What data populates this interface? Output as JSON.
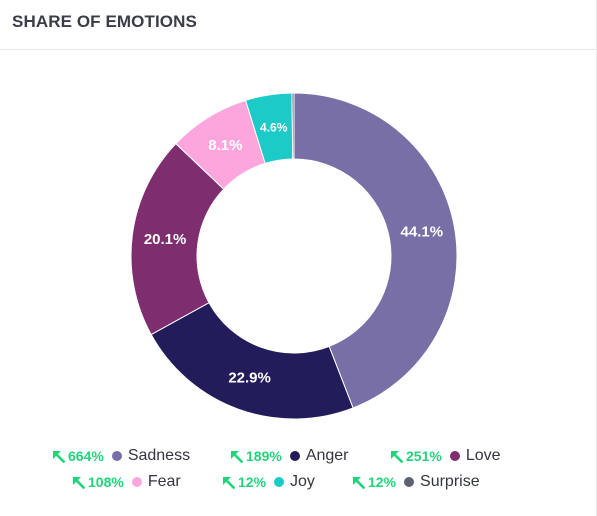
{
  "header": {
    "title": "SHARE OF EMOTIONS"
  },
  "chart_data": {
    "type": "pie",
    "variant": "donut",
    "categories": [
      "Sadness",
      "Anger",
      "Love",
      "Fear",
      "Joy",
      "Surprise"
    ],
    "values": [
      44.1,
      22.9,
      20.1,
      8.1,
      4.6,
      0.2
    ],
    "data_labels": [
      "44.1%",
      "22.9%",
      "20.1%",
      "8.1%",
      "4.6%",
      ""
    ],
    "colors": [
      "#776fa6",
      "#221c5a",
      "#7e2d6e",
      "#fca6dd",
      "#1ccbc8",
      "#5b6270"
    ],
    "legend_placement": "bottom",
    "title": ""
  },
  "legend": {
    "items": [
      {
        "name": "Sadness",
        "change": "664%",
        "color": "#776fa6"
      },
      {
        "name": "Anger",
        "change": "189%",
        "color": "#221c5a"
      },
      {
        "name": "Love",
        "change": "251%",
        "color": "#7e2d6e"
      },
      {
        "name": "Fear",
        "change": "108%",
        "color": "#fca6dd"
      },
      {
        "name": "Joy",
        "change": "12%",
        "color": "#1ccbc8"
      },
      {
        "name": "Surprise",
        "change": "12%",
        "color": "#5b6270"
      }
    ],
    "change_color": "#1ed57a",
    "change_icon": "arrow-up-left-icon"
  }
}
